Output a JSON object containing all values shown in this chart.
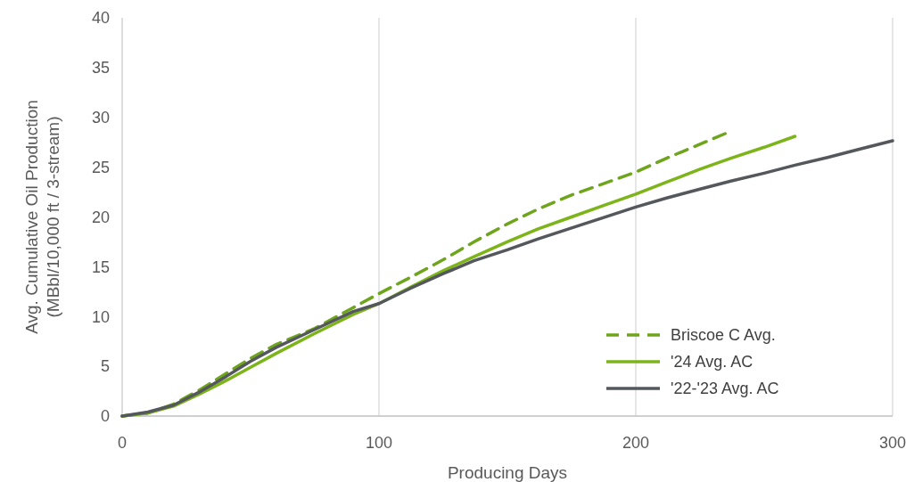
{
  "chart_data": {
    "type": "line",
    "xlabel": "Producing Days",
    "ylabel": "Avg. Cumulative Oil Production\n(MBbl/10,000 ft / 3-stream)",
    "xlim": [
      0,
      300
    ],
    "xticks": [
      0,
      100,
      200,
      300
    ],
    "ylim": [
      0,
      40
    ],
    "yticks": [
      0,
      5,
      10,
      15,
      20,
      25,
      30,
      35,
      40
    ],
    "grid": "x",
    "legend": "bottom right",
    "series": [
      {
        "name": "Briscoe C Avg.",
        "color": "#6fa51c",
        "line_style": "dashed",
        "x": [
          0,
          10,
          20,
          30,
          40,
          50,
          60,
          75,
          90,
          100,
          112,
          125,
          137,
          150,
          162,
          175,
          187,
          200,
          212,
          225,
          236
        ],
        "values": [
          0,
          0.3,
          1.2,
          2.6,
          4.2,
          5.8,
          7.2,
          8.8,
          10.9,
          12.3,
          13.9,
          15.7,
          17.5,
          19.3,
          20.8,
          22.2,
          23.3,
          24.5,
          25.9,
          27.3,
          28.5
        ]
      },
      {
        "name": "'24 Avg. AC",
        "color": "#7cb41a",
        "line_style": "solid",
        "x": [
          0,
          10,
          20,
          30,
          40,
          50,
          60,
          75,
          90,
          100,
          112,
          125,
          137,
          150,
          162,
          175,
          187,
          200,
          212,
          225,
          237,
          250,
          262
        ],
        "values": [
          0,
          0.3,
          1.0,
          2.2,
          3.5,
          4.9,
          6.3,
          8.3,
          10.2,
          11.3,
          12.9,
          14.6,
          16.0,
          17.5,
          18.8,
          20.0,
          21.1,
          22.3,
          23.5,
          24.8,
          25.9,
          27.0,
          28.1
        ]
      },
      {
        "name": "'22-'23 Avg. AC",
        "color": "#54585c",
        "line_style": "solid",
        "x": [
          0,
          10,
          20,
          30,
          40,
          50,
          60,
          75,
          90,
          100,
          112,
          125,
          137,
          150,
          162,
          175,
          187,
          200,
          212,
          225,
          237,
          250,
          262,
          275,
          287,
          300
        ],
        "values": [
          0,
          0.4,
          1.1,
          2.4,
          3.9,
          5.5,
          6.9,
          8.7,
          10.5,
          11.3,
          12.8,
          14.3,
          15.6,
          16.7,
          17.8,
          18.9,
          19.9,
          21.0,
          21.9,
          22.8,
          23.6,
          24.4,
          25.2,
          26.0,
          26.8,
          27.65
        ]
      }
    ]
  }
}
